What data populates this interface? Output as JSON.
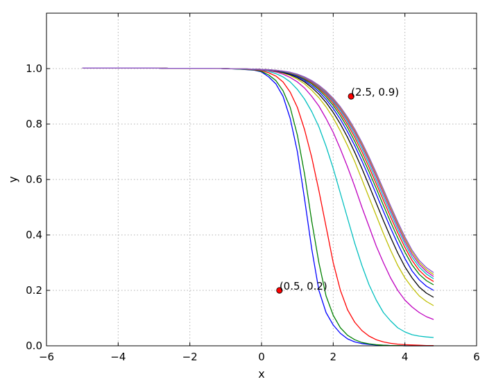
{
  "chart_data": {
    "type": "line",
    "title": "",
    "xlabel": "x",
    "ylabel": "y",
    "xlim": [
      -6,
      6
    ],
    "ylim": [
      0,
      1.2
    ],
    "xticks": [
      -6,
      -4,
      -2,
      0,
      2,
      4,
      6
    ],
    "xtick_labels": [
      "−6",
      "−4",
      "−2",
      "0",
      "2",
      "4",
      "6"
    ],
    "yticks": [
      0,
      0.2,
      0.4,
      0.6,
      0.8,
      1.0
    ],
    "ytick_labels": [
      "0.0",
      "0.2",
      "0.4",
      "0.6",
      "0.8",
      "1.0"
    ],
    "grid": true,
    "x": [
      -5.0,
      -4.6,
      -4.2,
      -3.8,
      -3.4,
      -3.0,
      -2.6,
      -2.2,
      -1.8,
      -1.4,
      -1.0,
      -0.6,
      -0.2,
      0.0,
      0.2,
      0.4,
      0.6,
      0.8,
      1.0,
      1.2,
      1.4,
      1.6,
      1.8,
      2.0,
      2.2,
      2.4,
      2.6,
      2.8,
      3.0,
      3.2,
      3.4,
      3.6,
      3.8,
      4.0,
      4.2,
      4.4,
      4.6,
      4.8
    ],
    "series": [
      {
        "color": "#0000ff",
        "values": [
          1.002,
          1.002,
          1.002,
          1.002,
          1.002,
          1.002,
          1.001,
          1.001,
          1.001,
          1.001,
          1.0,
          0.998,
          0.994,
          0.988,
          0.97,
          0.945,
          0.9,
          0.82,
          0.7,
          0.53,
          0.35,
          0.2,
          0.12,
          0.075,
          0.045,
          0.025,
          0.014,
          0.008,
          0.005,
          0.003,
          0.002,
          0.001,
          0.001,
          0.0,
          0.0,
          0.0,
          0.0,
          0.0
        ]
      },
      {
        "color": "#008000",
        "values": [
          1.002,
          1.002,
          1.002,
          1.002,
          1.002,
          1.002,
          1.001,
          1.001,
          1.001,
          1.001,
          1.0,
          0.998,
          0.995,
          0.99,
          0.977,
          0.957,
          0.92,
          0.86,
          0.76,
          0.62,
          0.45,
          0.3,
          0.18,
          0.11,
          0.065,
          0.038,
          0.022,
          0.012,
          0.007,
          0.004,
          0.002,
          0.001,
          0.001,
          0.0,
          0.0,
          0.0,
          0.0,
          0.0
        ]
      },
      {
        "color": "#ff0000",
        "values": [
          1.002,
          1.002,
          1.002,
          1.002,
          1.002,
          1.002,
          1.001,
          1.001,
          1.001,
          1.001,
          1.0,
          0.999,
          0.996,
          0.993,
          0.985,
          0.973,
          0.952,
          0.915,
          0.86,
          0.78,
          0.68,
          0.56,
          0.43,
          0.3,
          0.2,
          0.13,
          0.085,
          0.055,
          0.035,
          0.022,
          0.014,
          0.009,
          0.006,
          0.004,
          0.003,
          0.002,
          0.001,
          0.001
        ]
      },
      {
        "color": "#00bfbf",
        "values": [
          1.002,
          1.002,
          1.002,
          1.002,
          1.002,
          1.002,
          1.001,
          1.001,
          1.001,
          1.001,
          1.0,
          0.999,
          0.997,
          0.995,
          0.99,
          0.982,
          0.97,
          0.952,
          0.925,
          0.89,
          0.845,
          0.79,
          0.72,
          0.64,
          0.55,
          0.46,
          0.37,
          0.29,
          0.22,
          0.165,
          0.12,
          0.09,
          0.065,
          0.05,
          0.04,
          0.035,
          0.032,
          0.03
        ]
      },
      {
        "color": "#bf00bf",
        "values": [
          1.002,
          1.002,
          1.002,
          1.002,
          1.002,
          1.002,
          1.001,
          1.001,
          1.001,
          1.001,
          1.0,
          0.999,
          0.998,
          0.996,
          0.993,
          0.988,
          0.98,
          0.968,
          0.952,
          0.93,
          0.9,
          0.865,
          0.82,
          0.77,
          0.71,
          0.645,
          0.575,
          0.5,
          0.43,
          0.36,
          0.3,
          0.245,
          0.2,
          0.165,
          0.14,
          0.12,
          0.105,
          0.095
        ]
      },
      {
        "color": "#bfbf00",
        "values": [
          1.002,
          1.002,
          1.002,
          1.002,
          1.002,
          1.002,
          1.001,
          1.001,
          1.001,
          1.001,
          1.0,
          0.999,
          0.998,
          0.997,
          0.994,
          0.99,
          0.984,
          0.975,
          0.962,
          0.945,
          0.922,
          0.895,
          0.862,
          0.822,
          0.775,
          0.722,
          0.665,
          0.6,
          0.535,
          0.47,
          0.405,
          0.345,
          0.29,
          0.245,
          0.21,
          0.18,
          0.16,
          0.145
        ]
      },
      {
        "color": "#000000",
        "values": [
          1.002,
          1.002,
          1.002,
          1.002,
          1.002,
          1.002,
          1.001,
          1.001,
          1.001,
          1.001,
          1.0,
          0.999,
          0.998,
          0.997,
          0.995,
          0.991,
          0.986,
          0.978,
          0.967,
          0.952,
          0.932,
          0.908,
          0.878,
          0.842,
          0.8,
          0.752,
          0.698,
          0.64,
          0.578,
          0.515,
          0.452,
          0.392,
          0.335,
          0.285,
          0.245,
          0.212,
          0.19,
          0.175
        ]
      },
      {
        "color": "#0000ff",
        "values": [
          1.002,
          1.002,
          1.002,
          1.002,
          1.002,
          1.002,
          1.001,
          1.001,
          1.001,
          1.001,
          1.0,
          0.999,
          0.998,
          0.997,
          0.995,
          0.992,
          0.988,
          0.981,
          0.971,
          0.957,
          0.939,
          0.917,
          0.889,
          0.856,
          0.817,
          0.772,
          0.722,
          0.667,
          0.608,
          0.547,
          0.485,
          0.425,
          0.368,
          0.315,
          0.27,
          0.238,
          0.215,
          0.2
        ]
      },
      {
        "color": "#008000",
        "values": [
          1.002,
          1.002,
          1.002,
          1.002,
          1.002,
          1.002,
          1.001,
          1.001,
          1.001,
          1.001,
          1.0,
          0.999,
          0.998,
          0.997,
          0.996,
          0.993,
          0.989,
          0.983,
          0.974,
          0.961,
          0.945,
          0.924,
          0.898,
          0.867,
          0.83,
          0.787,
          0.738,
          0.685,
          0.628,
          0.568,
          0.507,
          0.447,
          0.39,
          0.338,
          0.292,
          0.258,
          0.235,
          0.22
        ]
      },
      {
        "color": "#ff0000",
        "values": [
          1.002,
          1.002,
          1.002,
          1.002,
          1.002,
          1.002,
          1.001,
          1.001,
          1.001,
          1.001,
          1.0,
          0.999,
          0.998,
          0.997,
          0.996,
          0.993,
          0.99,
          0.984,
          0.976,
          0.964,
          0.949,
          0.929,
          0.905,
          0.875,
          0.84,
          0.799,
          0.752,
          0.7,
          0.644,
          0.585,
          0.525,
          0.465,
          0.408,
          0.355,
          0.308,
          0.272,
          0.248,
          0.232
        ]
      },
      {
        "color": "#00bfbf",
        "values": [
          1.002,
          1.002,
          1.002,
          1.002,
          1.002,
          1.002,
          1.001,
          1.001,
          1.001,
          1.001,
          1.0,
          0.999,
          0.998,
          0.997,
          0.996,
          0.994,
          0.99,
          0.985,
          0.977,
          0.966,
          0.952,
          0.933,
          0.91,
          0.881,
          0.848,
          0.808,
          0.762,
          0.712,
          0.657,
          0.598,
          0.538,
          0.479,
          0.421,
          0.368,
          0.32,
          0.284,
          0.259,
          0.242
        ]
      },
      {
        "color": "#bf00bf",
        "values": [
          1.002,
          1.002,
          1.002,
          1.002,
          1.002,
          1.002,
          1.001,
          1.001,
          1.001,
          1.001,
          1.0,
          0.999,
          0.998,
          0.997,
          0.996,
          0.994,
          0.991,
          0.986,
          0.978,
          0.968,
          0.954,
          0.936,
          0.914,
          0.886,
          0.854,
          0.815,
          0.771,
          0.722,
          0.668,
          0.61,
          0.55,
          0.49,
          0.432,
          0.378,
          0.33,
          0.294,
          0.268,
          0.25
        ]
      },
      {
        "color": "#bfbf00",
        "values": [
          1.002,
          1.002,
          1.002,
          1.002,
          1.002,
          1.002,
          1.001,
          1.001,
          1.001,
          1.001,
          1.0,
          0.999,
          0.998,
          0.997,
          0.996,
          0.994,
          0.991,
          0.986,
          0.979,
          0.969,
          0.956,
          0.938,
          0.917,
          0.89,
          0.858,
          0.82,
          0.777,
          0.728,
          0.675,
          0.618,
          0.558,
          0.498,
          0.44,
          0.386,
          0.338,
          0.301,
          0.275,
          0.257
        ]
      },
      {
        "color": "#8a52cf",
        "values": [
          1.002,
          1.002,
          1.002,
          1.002,
          1.002,
          1.002,
          1.001,
          1.001,
          1.001,
          1.001,
          1.0,
          0.999,
          0.998,
          0.997,
          0.996,
          0.994,
          0.991,
          0.987,
          0.98,
          0.97,
          0.957,
          0.94,
          0.919,
          0.893,
          0.862,
          0.825,
          0.782,
          0.734,
          0.681,
          0.624,
          0.565,
          0.505,
          0.447,
          0.393,
          0.345,
          0.308,
          0.282,
          0.264
        ]
      }
    ],
    "annotations": [
      {
        "x": 2.5,
        "y": 0.9,
        "text": "(2.5, 0.9)"
      },
      {
        "x": 0.5,
        "y": 0.2,
        "text": "(0.5, 0.2)"
      }
    ],
    "marker_color": "#ff0000"
  }
}
